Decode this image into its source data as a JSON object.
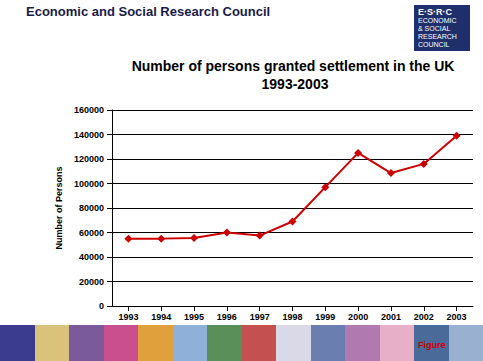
{
  "header": {
    "title": "Economic and Social Research Council",
    "logo": [
      "E·S·R·C",
      "ECONOMIC",
      "& SOCIAL",
      "RESEARCH",
      "COUNCIL"
    ]
  },
  "footer": {
    "label": "Figure"
  },
  "chart_data": {
    "type": "line",
    "title": "Number of persons granted settlement in the UK 1993-2003",
    "y_label": "Number of Persons",
    "categories": [
      "1993",
      "1994",
      "1995",
      "1996",
      "1997",
      "1998",
      "1999",
      "2000",
      "2001",
      "2002",
      "2003"
    ],
    "values": [
      55000,
      55000,
      55500,
      60000,
      57500,
      69000,
      97000,
      125000,
      108500,
      116000,
      139000
    ],
    "color": "#cc0000",
    "marker": "diamond",
    "ylim": [
      0,
      160000
    ],
    "yticks": [
      0,
      20000,
      40000,
      60000,
      80000,
      100000,
      120000,
      140000,
      160000
    ],
    "grid": true
  }
}
